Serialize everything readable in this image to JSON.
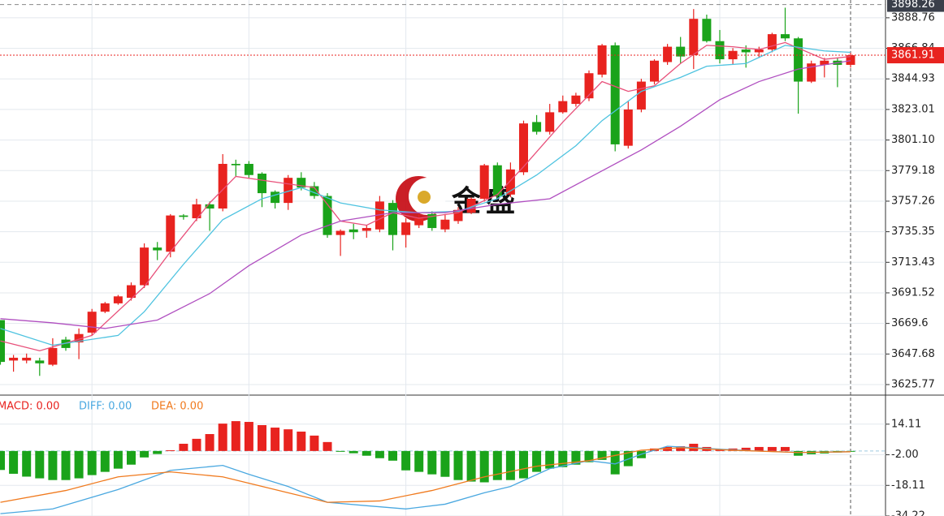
{
  "chart_data": [
    {
      "type": "candlestick",
      "open": [
        3672,
        3643,
        3643,
        3643,
        3640,
        3658,
        3656,
        3663,
        3678,
        3684,
        3688,
        3697,
        3724,
        3721,
        3747,
        3745,
        3755,
        3752,
        3784,
        3784,
        3777,
        3764,
        3756,
        3774,
        3768,
        3761,
        3733,
        3737,
        3736,
        3737,
        3756,
        3733,
        3740,
        3748,
        3737,
        3743,
        3749,
        3759,
        3783,
        3762,
        3778,
        3814,
        3807,
        3821,
        3827,
        3831,
        3848,
        3869,
        3797,
        3823,
        3843,
        3857,
        3868,
        3862,
        3888,
        3872,
        3859,
        3866,
        3864,
        3866,
        3877,
        3874,
        3843,
        3855,
        3858,
        3855
      ],
      "high": [
        3672,
        3647,
        3648,
        3645,
        3659,
        3660,
        3666,
        3680,
        3685,
        3690,
        3699,
        3727,
        3728,
        3748,
        3748,
        3759,
        3757,
        3791,
        3787,
        3786,
        3778,
        3765,
        3776,
        3778,
        3771,
        3763,
        3737,
        3741,
        3740,
        3761,
        3758,
        3745,
        3748,
        3750,
        3748,
        3753,
        3760,
        3784,
        3785,
        3785,
        3815,
        3819,
        3827,
        3833,
        3835,
        3851,
        3870,
        3871,
        3829,
        3845,
        3859,
        3870,
        3875,
        3895,
        3891,
        3880,
        3867,
        3869,
        3868,
        3878,
        3896,
        3875,
        3858,
        3860,
        3860,
        3864
      ],
      "low": [
        3640,
        3635,
        3641,
        3632,
        3639,
        3650,
        3644,
        3661,
        3677,
        3683,
        3686,
        3695,
        3715,
        3717,
        3744,
        3743,
        3736,
        3750,
        3775,
        3774,
        3753,
        3752,
        3751,
        3765,
        3759,
        3731,
        3718,
        3730,
        3731,
        3735,
        3722,
        3724,
        3738,
        3736,
        3735,
        3741,
        3748,
        3757,
        3759,
        3760,
        3776,
        3805,
        3805,
        3820,
        3825,
        3829,
        3846,
        3793,
        3795,
        3821,
        3841,
        3855,
        3856,
        3852,
        3871,
        3856,
        3855,
        3853,
        3860,
        3864,
        3872,
        3820,
        3842,
        3846,
        3839,
        3853
      ],
      "close": [
        3642,
        3645,
        3645,
        3641,
        3652,
        3652,
        3662,
        3678,
        3684,
        3689,
        3697,
        3724,
        3722,
        3747,
        3746,
        3755,
        3752,
        3784,
        3783,
        3776,
        3763,
        3756,
        3774,
        3767,
        3761,
        3733,
        3736,
        3735,
        3738,
        3757,
        3733,
        3742,
        3745,
        3738,
        3744,
        3751,
        3759,
        3783,
        3761,
        3780,
        3813,
        3807,
        3821,
        3829,
        3833,
        3849,
        3869,
        3798,
        3823,
        3843,
        3858,
        3868,
        3861,
        3888,
        3872,
        3859,
        3865,
        3864,
        3866,
        3877,
        3874,
        3843,
        3856,
        3858,
        3855,
        3861.91
      ],
      "up_color": "#e8231f",
      "down_color": "#1aa31a",
      "overlays": [
        {
          "color": "#e8507a",
          "x": [
            0,
            3,
            7,
            11,
            13,
            16,
            18,
            21,
            24,
            26,
            28,
            30,
            32,
            35,
            38,
            40,
            43,
            46,
            48,
            50,
            52,
            54,
            56,
            58,
            60,
            63,
            65
          ],
          "values": [
            3657,
            3650,
            3661,
            3696,
            3721,
            3756,
            3775,
            3771,
            3767,
            3743,
            3740,
            3749,
            3745,
            3749,
            3762,
            3782,
            3814,
            3843,
            3836,
            3840,
            3856,
            3869,
            3868,
            3866,
            3871,
            3859,
            3861
          ]
        },
        {
          "color": "#4ec3e0",
          "x": [
            0,
            4,
            9,
            11,
            14,
            17,
            20,
            23,
            26,
            29,
            32,
            35,
            38,
            41,
            44,
            46,
            49,
            52,
            54,
            57,
            60,
            63,
            65
          ],
          "values": [
            3666,
            3654,
            3661,
            3678,
            3712,
            3744,
            3759,
            3767,
            3756,
            3751,
            3749,
            3750,
            3759,
            3776,
            3797,
            3815,
            3836,
            3846,
            3854,
            3856,
            3869,
            3865,
            3864
          ]
        },
        {
          "color": "#b04fc0",
          "x": [
            0,
            4,
            8,
            12,
            16,
            19,
            23,
            26,
            30,
            34,
            38,
            42,
            46,
            49,
            52,
            55,
            58,
            61,
            65
          ],
          "values": [
            3673,
            3670,
            3666,
            3672,
            3691,
            3711,
            3733,
            3743,
            3749,
            3749,
            3755,
            3759,
            3779,
            3794,
            3811,
            3830,
            3843,
            3852,
            3858
          ]
        }
      ],
      "ylim": [
        3618.2,
        3901.5
      ],
      "yticks": [
        3625.77,
        3647.68,
        3669.6,
        3691.52,
        3713.43,
        3735.35,
        3757.26,
        3779.18,
        {
          "value": 3801.1,
          "label": "3801.10"
        },
        3823.01,
        3844.93,
        3866.84,
        3888.76
      ],
      "xticks": [
        7,
        19,
        31,
        43,
        55
      ],
      "grid": true,
      "high_line": 3898.26,
      "high_line_color": "#3a3f4a",
      "last_price": 3861.91,
      "last_price_color": "#e8231f",
      "watermark": "金盛"
    },
    {
      "type": "macd",
      "series": [
        {
          "name": "MACD: 0.00",
          "color": "#e8231f",
          "down_color": "#1aa31a",
          "values": [
            -10,
            -12,
            -13.5,
            -14.4,
            -15.3,
            -15.3,
            -14.4,
            -12.7,
            -11,
            -9.3,
            -7.2,
            -3.4,
            -1.6,
            0.4,
            3.8,
            6.4,
            8.9,
            14.4,
            15.7,
            15.3,
            13.6,
            12.3,
            11.4,
            10.2,
            8.1,
            4.7,
            -0.3,
            -1.2,
            -2.5,
            -3.8,
            -5.1,
            -10.2,
            -11,
            -12.3,
            -13.6,
            -15.3,
            -16.1,
            -16.5,
            -15.3,
            -15.3,
            -14.4,
            -11,
            -9.3,
            -8.5,
            -7.2,
            -5.9,
            -4.7,
            -12.3,
            -8,
            -3.8,
            1.3,
            2.1,
            2.5,
            3.8,
            2.1,
            0.8,
            1.3,
            1.7,
            2.1,
            2.1,
            2.1,
            -2.5,
            -1.7,
            -1.3,
            -0.8,
            -0.4
          ]
        },
        {
          "name": "DIFF: 0.00",
          "color": "#4aa8e0",
          "x": [
            0,
            4,
            9,
            13,
            17,
            19,
            22,
            25,
            28,
            31,
            34,
            37,
            39,
            42,
            45,
            47,
            49,
            51,
            54,
            58,
            61,
            65
          ],
          "values": [
            -33,
            -30.5,
            -20.3,
            -10.2,
            -7.6,
            -12.3,
            -18.7,
            -27,
            -28.8,
            -30.5,
            -28,
            -22,
            -18.7,
            -9.3,
            -5.1,
            -6.8,
            -1.7,
            2.5,
            1.3,
            0,
            -0.8,
            -0.4
          ]
        },
        {
          "name": "DEA: 0.00",
          "color": "#f07a1e",
          "x": [
            0,
            5,
            9,
            13,
            17,
            22,
            25,
            29,
            33,
            37,
            41,
            45,
            49,
            52,
            56,
            61,
            65
          ],
          "values": [
            -27,
            -20.8,
            -13.6,
            -11,
            -13.6,
            -22,
            -27,
            -26.3,
            -20.8,
            -13.6,
            -8,
            -5.1,
            0.4,
            1.7,
            0.4,
            -0.8,
            -0.4
          ]
        }
      ],
      "ylim": [
        -34.22,
        29.4
      ],
      "yticks": [
        14.11,
        {
          "value": -2,
          "label": "-2.00"
        },
        -18.11,
        -34.22
      ],
      "grid": true
    }
  ]
}
